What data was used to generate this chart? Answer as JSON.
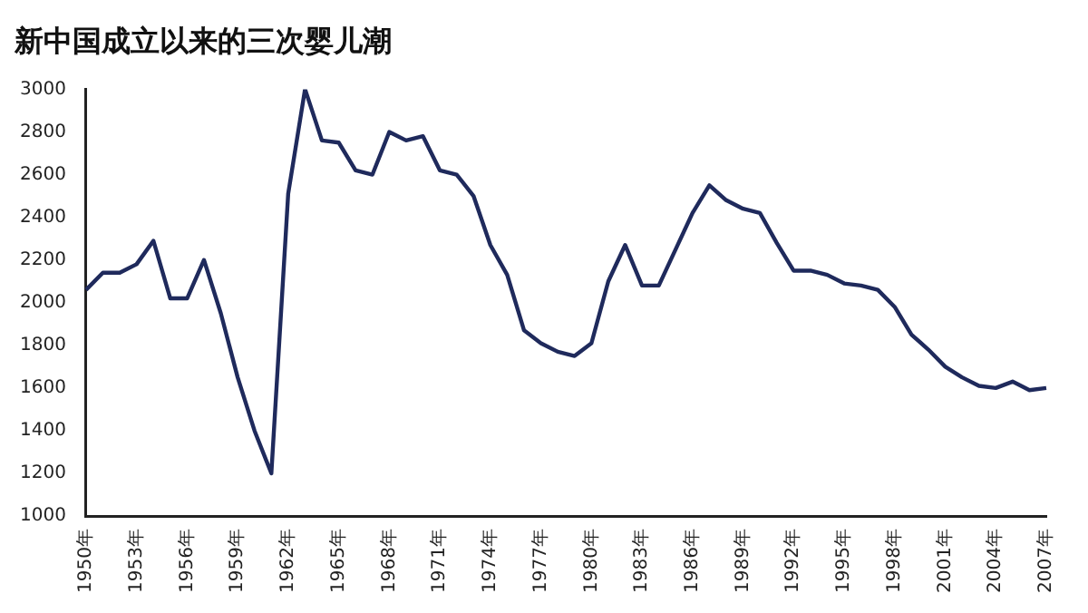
{
  "chart_data": {
    "type": "line",
    "title": "新中国成立以来的三次婴儿潮",
    "categories": [
      "1950年",
      null,
      null,
      "1953年",
      null,
      null,
      "1956年",
      null,
      null,
      "1959年",
      null,
      null,
      "1962年",
      null,
      null,
      "1965年",
      null,
      null,
      "1968年",
      null,
      null,
      "1971年",
      null,
      null,
      "1974年",
      null,
      null,
      "1977年",
      null,
      null,
      "1980年",
      null,
      null,
      "1983年",
      null,
      null,
      "1986年",
      null,
      null,
      "1989年",
      null,
      null,
      "1992年",
      null,
      null,
      "1995年",
      null,
      null,
      "1998年",
      null,
      null,
      "2001年",
      null,
      null,
      "2004年",
      null,
      null,
      "2007年"
    ],
    "series": [
      {
        "color": "#1f2a5c",
        "values": [
          2060,
          2140,
          2140,
          2180,
          2290,
          2020,
          2020,
          2200,
          1950,
          1650,
          1400,
          1200,
          2510,
          3000,
          2760,
          2750,
          2620,
          2600,
          2800,
          2760,
          2780,
          2620,
          2600,
          2500,
          2270,
          2130,
          1870,
          1810,
          1770,
          1750,
          1810,
          2100,
          2270,
          2080,
          2080,
          2250,
          2420,
          2550,
          2480,
          2440,
          2420,
          2280,
          2150,
          2150,
          2130,
          2090,
          2080,
          2060,
          1980,
          1850,
          1780,
          1700,
          1650,
          1610,
          1600,
          1630,
          1590,
          1600
        ]
      }
    ],
    "ylim": [
      1000,
      3000
    ],
    "yticks": [
      1000,
      1200,
      1400,
      1600,
      1800,
      2000,
      2200,
      2400,
      2600,
      2800,
      3000
    ],
    "grid": false,
    "legend": false,
    "marker": "none",
    "line_style": "solid"
  }
}
